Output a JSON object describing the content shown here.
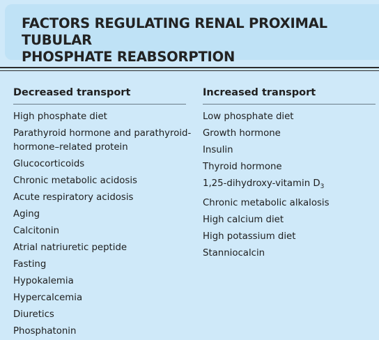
{
  "title_lines": [
    "FACTORS REGULATING RENAL PROXIMAL TUBULAR",
    "PHOSPHATE REABSORPTION"
  ],
  "left_column": {
    "header": "Decreased transport",
    "items": [
      "High phosphate diet",
      "Parathyroid hormone and parathyroid-",
      "hormone–related protein",
      "Glucocorticoids",
      "Chronic metabolic acidosis",
      "Acute respiratory acidosis",
      "Aging",
      "Calcitonin",
      "Atrial natriuretic peptide",
      "Fasting",
      "Hypokalemia",
      "Hypercalcemia",
      "Diuretics",
      "Phosphatonin"
    ]
  },
  "right_column": {
    "header": "Increased transport",
    "items": [
      "Low phosphate diet",
      "Growth hormone",
      "Insulin",
      "Thyroid hormone",
      "1,25-dihydroxy-vitamin D",
      "3",
      "Chronic metabolic alkalosis",
      "High calcium diet",
      "High potassium diet",
      "Stanniocalcin"
    ]
  }
}
